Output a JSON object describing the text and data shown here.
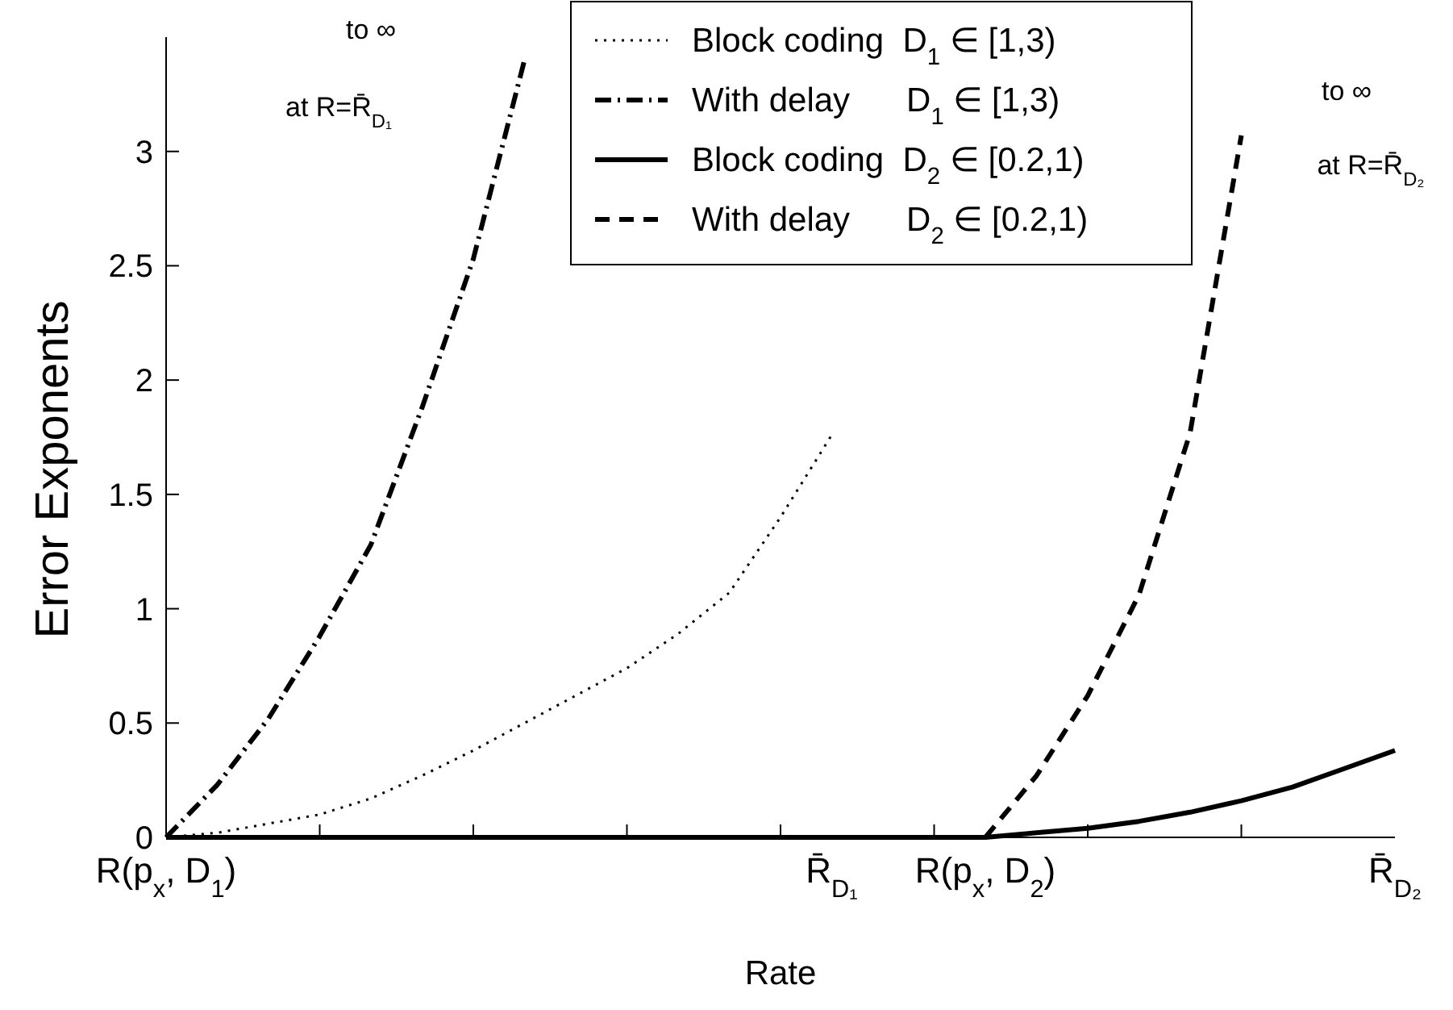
{
  "chart_data": {
    "type": "line",
    "xlabel": "Rate",
    "ylabel": "Error Exponents",
    "ylim": [
      0,
      3.5
    ],
    "categories": [
      "R(p$_{x}$, D$_{1}$)",
      null,
      null,
      null,
      null,
      null,
      null,
      null,
      null,
      null,
      null,
      null,
      null,
      "R̄$_{D₁}$",
      null,
      null,
      "R(p$_{x}$, D$_{2}$)",
      null,
      null,
      null,
      null,
      null,
      null,
      null,
      "R̄$_{D₂}$"
    ],
    "yticks": [
      0,
      0.5,
      1,
      1.5,
      2,
      2.5,
      3
    ],
    "grid": false,
    "legend": "top",
    "marker": "none",
    "series": [
      {
        "name": "Block coding  D$_{1}$ ∈ [1,3)",
        "color": "#000000",
        "line_style": "dotted",
        "values": [
          0,
          0.02,
          0.06,
          0.1,
          0.17,
          0.27,
          0.38,
          0.5,
          0.62,
          0.74,
          0.89,
          1.07,
          1.4,
          1.76,
          null,
          null,
          null,
          null,
          null,
          null,
          null,
          null,
          null,
          null,
          null
        ]
      },
      {
        "name": "With delay      D$_{1}$ ∈ [1,3)",
        "color": "#000000",
        "line_style": "dashdot",
        "values": [
          0,
          0.23,
          0.52,
          0.88,
          1.28,
          1.88,
          2.53,
          3.4,
          null,
          null,
          null,
          null,
          null,
          null,
          null,
          null,
          null,
          null,
          null,
          null,
          null,
          null,
          null,
          null,
          null
        ]
      },
      {
        "name": "Block coding  D$_{2}$ ∈ [0.2,1)",
        "color": "#000000",
        "line_style": "solid",
        "values": [
          0,
          0,
          0,
          0,
          0,
          0,
          0,
          0,
          0,
          0,
          0,
          0,
          0,
          0,
          0,
          0,
          0,
          0.02,
          0.04,
          0.07,
          0.11,
          0.16,
          0.22,
          0.3,
          0.38
        ]
      },
      {
        "name": "With delay      D$_{2}$ ∈ [0.2,1)",
        "color": "#000000",
        "line_style": "dashed",
        "values": [
          null,
          null,
          null,
          null,
          null,
          null,
          null,
          null,
          null,
          null,
          null,
          null,
          null,
          null,
          null,
          null,
          0,
          0.27,
          0.62,
          1.06,
          1.77,
          3.07,
          null,
          null,
          null
        ]
      }
    ],
    "annotations": [
      "to ∞",
      "at R=R̄$_{D₁}$",
      "to ∞",
      "at R=R̄$_{D₂}$"
    ]
  }
}
